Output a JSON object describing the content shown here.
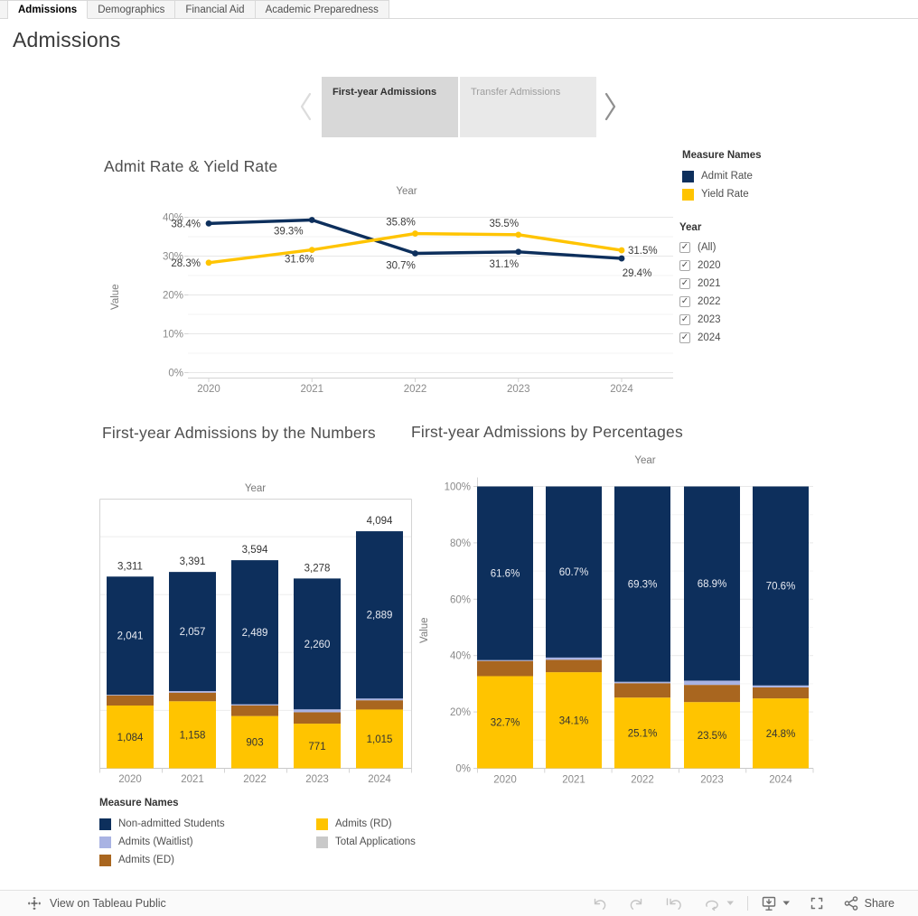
{
  "colors": {
    "navy": "#0d2f5c",
    "gold": "#ffc400",
    "brown": "#a9661f",
    "periwinkle": "#a9b3e3",
    "gray": "#c9c9c9"
  },
  "tabbar": {
    "tabs": [
      {
        "label": "Admissions",
        "active": true
      },
      {
        "label": "Demographics",
        "active": false
      },
      {
        "label": "Financial Aid",
        "active": false
      },
      {
        "label": "Academic Preparedness",
        "active": false
      }
    ]
  },
  "page_title": "Admissions",
  "carousel": {
    "buttons": [
      {
        "label": "First-year Admissions",
        "active": true
      },
      {
        "label": "Transfer Admissions",
        "active": false
      }
    ]
  },
  "rate_legend": {
    "title": "Measure Names",
    "items": [
      {
        "label": "Admit Rate",
        "color_key": "navy"
      },
      {
        "label": "Yield Rate",
        "color_key": "gold"
      }
    ]
  },
  "year_filter": {
    "title": "Year",
    "options": [
      {
        "label": "(All)",
        "checked": true
      },
      {
        "label": "2020",
        "checked": true
      },
      {
        "label": "2021",
        "checked": true
      },
      {
        "label": "2022",
        "checked": true
      },
      {
        "label": "2023",
        "checked": true
      },
      {
        "label": "2024",
        "checked": true
      }
    ]
  },
  "numbers_legend": {
    "title": "Measure Names",
    "column1": [
      {
        "label": "Non-admitted Students",
        "color_key": "navy"
      },
      {
        "label": "Admits (Waitlist)",
        "color_key": "periwinkle"
      },
      {
        "label": "Admits (ED)",
        "color_key": "brown"
      }
    ],
    "column2": [
      {
        "label": "Admits (RD)",
        "color_key": "gold"
      },
      {
        "label": "Total Applications",
        "color_key": "gray"
      }
    ]
  },
  "chart_data": [
    {
      "type": "line",
      "title": "Admit Rate & Yield Rate",
      "xlabel": "Year",
      "ylabel": "Value",
      "x": [
        "2020",
        "2021",
        "2022",
        "2023",
        "2024"
      ],
      "ylim": [
        0,
        42
      ],
      "yticks": [
        0,
        10,
        20,
        30,
        40
      ],
      "grid": "horizontal major every 10%, minor every 5%",
      "legend_position": "right",
      "series": [
        {
          "name": "Admit Rate",
          "color_key": "navy",
          "values": [
            38.4,
            39.3,
            30.7,
            31.1,
            29.4
          ],
          "labels": [
            "38.4%",
            "39.3%",
            "30.7%",
            "31.1%",
            "29.4%"
          ]
        },
        {
          "name": "Yield Rate",
          "color_key": "gold",
          "values": [
            28.3,
            31.6,
            35.8,
            35.5,
            31.5
          ],
          "labels": [
            "28.3%",
            "31.6%",
            "35.8%",
            "35.5%",
            "31.5%"
          ]
        }
      ]
    },
    {
      "type": "bar",
      "stacked": true,
      "title": "First-year Admissions by the Numbers",
      "xlabel": "Year",
      "categories": [
        "2020",
        "2021",
        "2022",
        "2023",
        "2024"
      ],
      "ylim": [
        0,
        4650
      ],
      "gridline_step": 1000,
      "y_axis_labels": false,
      "totals_labels": [
        "3,311",
        "3,391",
        "3,594",
        "3,278",
        "4,094"
      ],
      "totals": [
        3311,
        3391,
        3594,
        3278,
        4094
      ],
      "series": [
        {
          "name": "Admits (RD)",
          "color_key": "gold",
          "values": [
            1084,
            1158,
            903,
            771,
            1015
          ],
          "labels": [
            "1,084",
            "1,158",
            "903",
            "771",
            "1,015"
          ]
        },
        {
          "name": "Admits (ED)",
          "color_key": "brown",
          "values": [
            176,
            149,
            184,
            197,
            160
          ],
          "estimated": true
        },
        {
          "name": "Admits (Waitlist)",
          "color_key": "periwinkle",
          "values": [
            10,
            27,
            18,
            50,
            30
          ],
          "estimated": true
        },
        {
          "name": "Non-admitted Students",
          "color_key": "navy",
          "values": [
            2041,
            2057,
            2489,
            2260,
            2889
          ],
          "labels": [
            "2,041",
            "2,057",
            "2,489",
            "2,260",
            "2,889"
          ]
        }
      ]
    },
    {
      "type": "bar",
      "stacked": true,
      "normalized": true,
      "title": "First-year Admissions by Percentages",
      "xlabel": "Year",
      "ylabel": "Value",
      "categories": [
        "2020",
        "2021",
        "2022",
        "2023",
        "2024"
      ],
      "ylim": [
        0,
        100
      ],
      "yticks": [
        0,
        20,
        40,
        60,
        80,
        100
      ],
      "series": [
        {
          "name": "Admits (RD)",
          "color_key": "gold",
          "values": [
            32.7,
            34.1,
            25.1,
            23.5,
            24.8
          ],
          "labels": [
            "32.7%",
            "34.1%",
            "25.1%",
            "23.5%",
            "24.8%"
          ]
        },
        {
          "name": "Admits (ED)",
          "color_key": "brown",
          "values": [
            5.4,
            4.4,
            5.1,
            6.1,
            3.9
          ],
          "estimated": true
        },
        {
          "name": "Admits (Waitlist)",
          "color_key": "periwinkle",
          "values": [
            0.3,
            0.8,
            0.5,
            1.5,
            0.7
          ],
          "estimated": true
        },
        {
          "name": "Non-admitted Students",
          "color_key": "navy",
          "values": [
            61.6,
            60.7,
            69.3,
            68.9,
            70.6
          ],
          "labels": [
            "61.6%",
            "60.7%",
            "69.3%",
            "68.9%",
            "70.6%"
          ]
        }
      ]
    }
  ],
  "footer": {
    "left_label": "View on Tableau Public",
    "share_label": "Share"
  }
}
